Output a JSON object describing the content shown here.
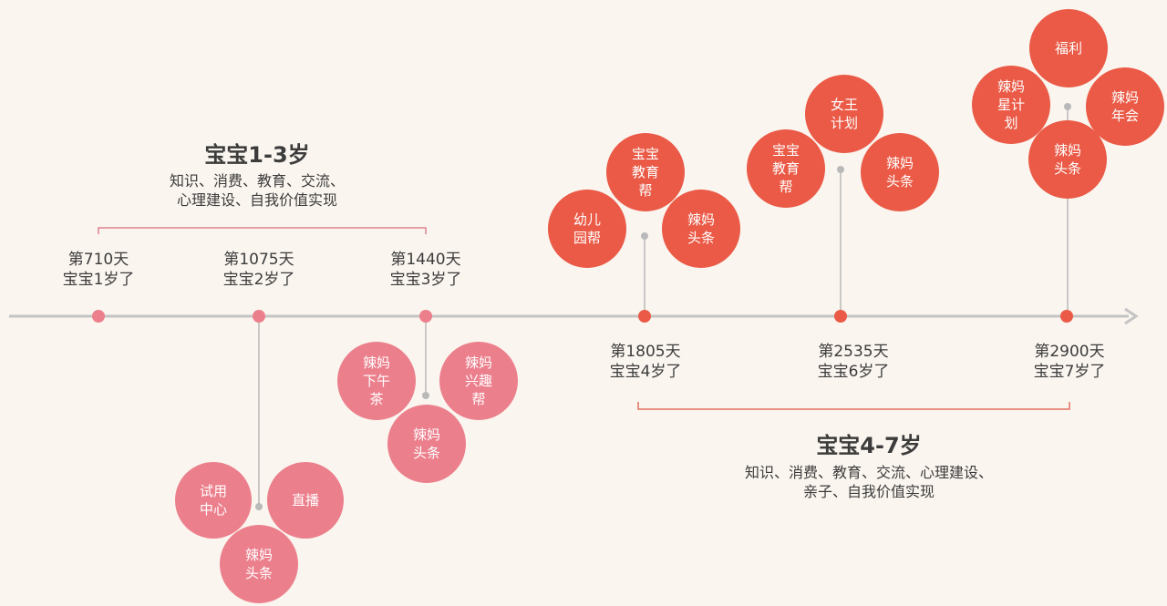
{
  "colors": {
    "axis": "#c4c4c4",
    "connector": "#b9b9b9",
    "pink": "#ec7f8c",
    "red": "#ea5a46",
    "text": "#3c3c3c",
    "bubble_text": "#ffffff"
  },
  "periods": [
    {
      "title": "宝宝1-3岁",
      "description": "知识、消费、教育、交流、\n心理建设、自我价值实现"
    },
    {
      "title": "宝宝4-7岁",
      "description": "知识、消费、教育、交流、心理建设、\n亲子、自我价值实现"
    }
  ],
  "milestones": [
    {
      "label": "第710天\n宝宝1岁了",
      "bubbles": []
    },
    {
      "label": "第1075天\n宝宝2岁了",
      "bubbles": [
        "试用\n中心",
        "直播",
        "辣妈\n头条"
      ]
    },
    {
      "label": "第1440天\n宝宝3岁了",
      "bubbles": [
        "辣妈\n下午\n茶",
        "辣妈\n兴趣\n帮",
        "辣妈\n头条"
      ]
    },
    {
      "label": "第1805天\n宝宝4岁了",
      "bubbles": [
        "宝宝\n教育\n帮",
        "幼儿\n园帮",
        "辣妈\n头条"
      ]
    },
    {
      "label": "第2535天\n宝宝6岁了",
      "bubbles": [
        "女王\n计划",
        "宝宝\n教育\n帮",
        "辣妈\n头条"
      ]
    },
    {
      "label": "第2900天\n宝宝7岁了",
      "bubbles": [
        "福利",
        "辣妈\n星计\n划",
        "辣妈\n年会",
        "辣妈\n头条"
      ]
    }
  ]
}
